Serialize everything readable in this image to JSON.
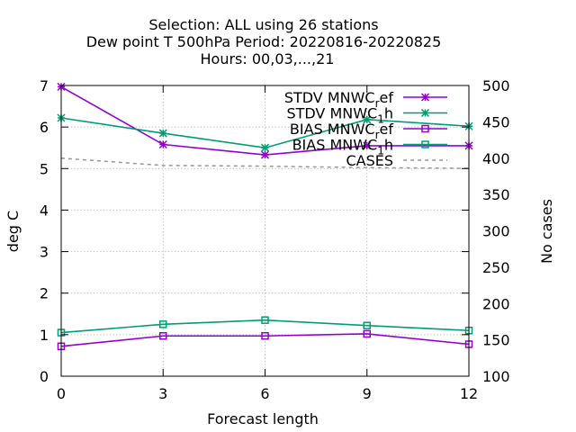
{
  "chart_data": {
    "type": "line",
    "title_lines": [
      "Selection: ALL using    26 stations",
      "Dew point T 500hPa   Period: 20220816-20220825",
      "Hours:  00,03,...,21"
    ],
    "xlabel": "Forecast length",
    "ylabel": "deg C",
    "y2label": "No cases",
    "x": [
      0,
      3,
      6,
      9,
      12
    ],
    "xticks": [
      "0",
      "3",
      "6",
      "9",
      "12"
    ],
    "xlim": [
      0,
      12
    ],
    "ylim": [
      0,
      7
    ],
    "yticks": [
      "0",
      "1",
      "2",
      "3",
      "4",
      "5",
      "6",
      "7"
    ],
    "y2lim": [
      100,
      500
    ],
    "y2ticks": [
      "100",
      "150",
      "200",
      "250",
      "300",
      "350",
      "400",
      "450",
      "500"
    ],
    "grid": true,
    "legend_position": "top-right",
    "series": [
      {
        "name": "STDV MNWC_ref",
        "legend_main": "STDV MNWC",
        "legend_sub": "r",
        "legend_tail": "ef",
        "axis": "y",
        "marker": "star",
        "color": "#9400d3",
        "values": [
          6.97,
          5.58,
          5.33,
          5.55,
          5.55
        ]
      },
      {
        "name": "STDV MNWC_1h",
        "legend_main": "STDV MNWC",
        "legend_sub": "1",
        "legend_tail": "h",
        "axis": "y",
        "marker": "star",
        "color": "#009e73",
        "values": [
          6.22,
          5.85,
          5.5,
          6.18,
          6.02
        ]
      },
      {
        "name": "BIAS MNWC_ref",
        "legend_main": "BIAS MNWC",
        "legend_sub": "r",
        "legend_tail": "ef",
        "axis": "y",
        "marker": "square",
        "color": "#9400d3",
        "values": [
          0.72,
          0.97,
          0.97,
          1.02,
          0.77
        ]
      },
      {
        "name": "BIAS MNWC_1h",
        "legend_main": "BIAS MNWC",
        "legend_sub": "1",
        "legend_tail": "h",
        "axis": "y",
        "marker": "square",
        "color": "#009e73",
        "values": [
          1.05,
          1.25,
          1.35,
          1.22,
          1.1
        ]
      },
      {
        "name": "CASES",
        "legend_main": "CASES",
        "legend_sub": "",
        "legend_tail": "",
        "axis": "y2",
        "marker": "none",
        "color": "#999999",
        "dashed": true,
        "values": [
          400,
          390,
          389,
          387,
          386
        ]
      }
    ]
  }
}
